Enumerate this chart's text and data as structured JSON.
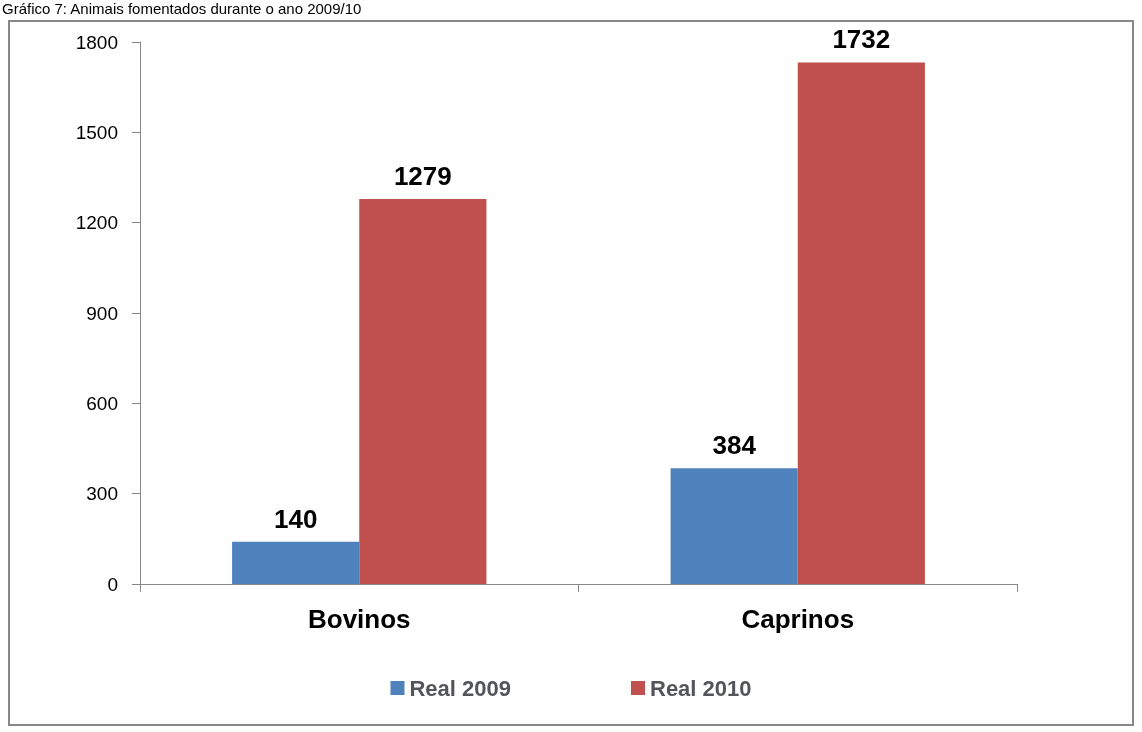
{
  "chart_data": {
    "type": "bar",
    "title": "Gráfico 7: Animais fomentados durante o ano 2009/10",
    "categories": [
      "Bovinos",
      "Caprinos"
    ],
    "series": [
      {
        "name": "Real 2009",
        "color": "#4f81bd",
        "values": [
          140,
          384
        ]
      },
      {
        "name": "Real 2010",
        "color": "#c0504d",
        "values": [
          1279,
          1732
        ]
      }
    ],
    "ylim": [
      0,
      1800
    ],
    "yticks": [
      0,
      300,
      600,
      900,
      1200,
      1500,
      1800
    ],
    "grid": false,
    "legend": "bottom",
    "data_labels": true
  }
}
